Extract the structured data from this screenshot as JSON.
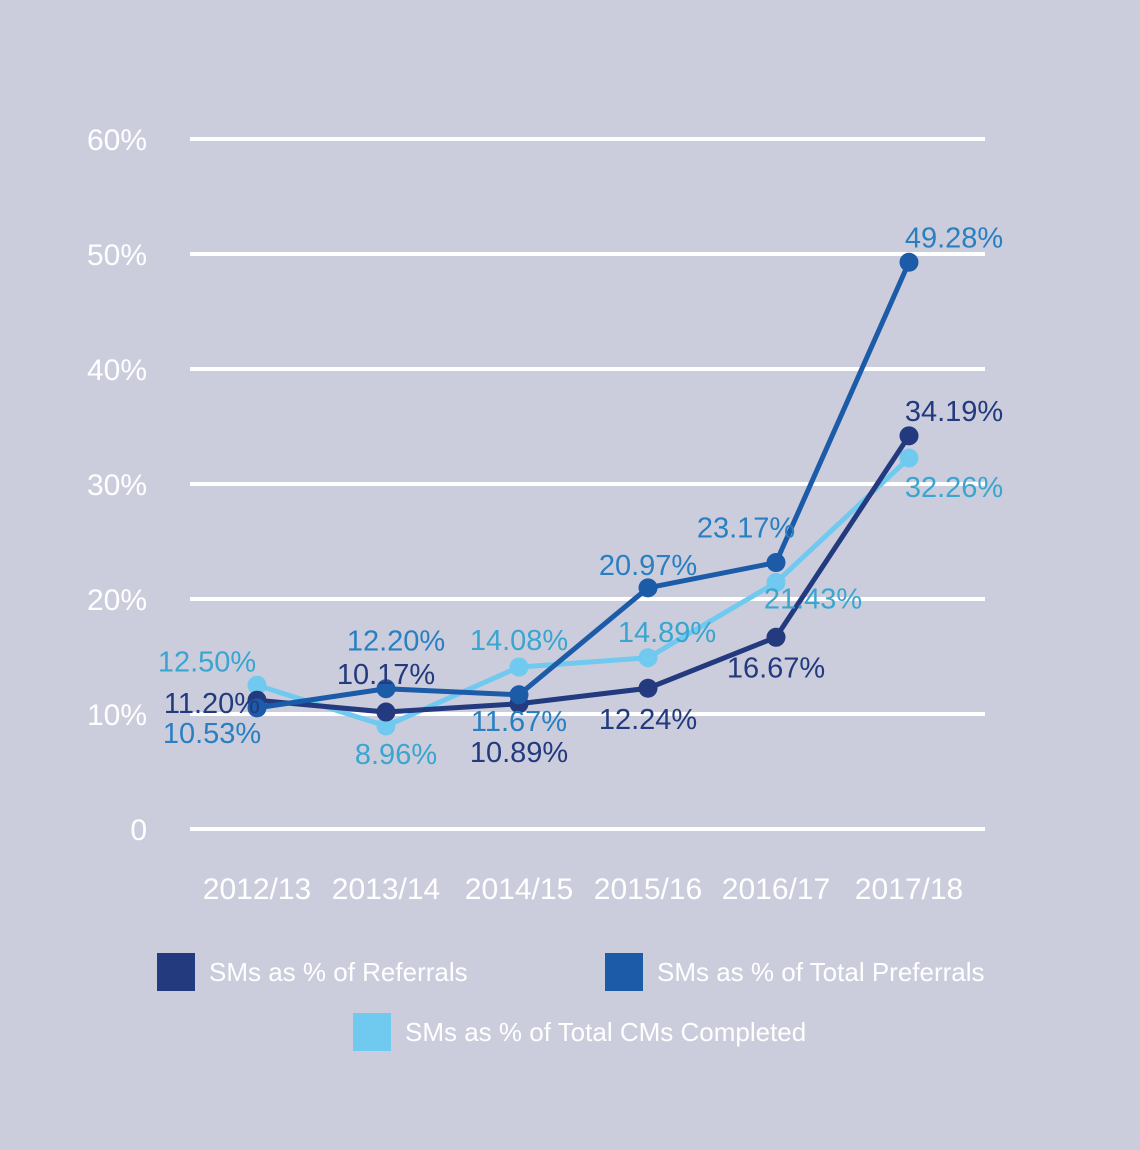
{
  "chart_data": {
    "type": "line",
    "categories": [
      "2012/13",
      "2013/14",
      "2014/15",
      "2015/16",
      "2016/17",
      "2017/18"
    ],
    "y_ticks": [
      "0",
      "10%",
      "20%",
      "30%",
      "40%",
      "50%",
      "60%"
    ],
    "ylim": [
      0,
      60
    ],
    "grid": true,
    "legend_position": "bottom",
    "series": [
      {
        "name": "SMs as % of Referrals",
        "color": "#233a7e",
        "values": [
          11.2,
          10.17,
          10.89,
          12.24,
          16.67,
          34.19
        ],
        "labels": [
          "11.20%",
          "10.17%",
          "10.89%",
          "12.24%",
          "16.67%",
          "34.19%"
        ]
      },
      {
        "name": "SMs as % of Total Preferrals",
        "color": "#1c5ba8",
        "label_color": "#2a7fc1",
        "values": [
          10.53,
          12.2,
          11.67,
          20.97,
          23.17,
          49.28
        ],
        "labels": [
          "10.53%",
          "12.20%",
          "11.67%",
          "20.97%",
          "23.17%",
          "49.28%"
        ]
      },
      {
        "name": "SMs as % of Total CMs Completed",
        "color": "#70c9ee",
        "label_color": "#3aa6cf",
        "values": [
          12.5,
          8.96,
          14.08,
          14.89,
          21.43,
          32.26
        ],
        "labels": [
          "12.50%",
          "8.96%",
          "14.08%",
          "14.89%",
          "21.43%",
          "32.26%"
        ]
      }
    ]
  }
}
